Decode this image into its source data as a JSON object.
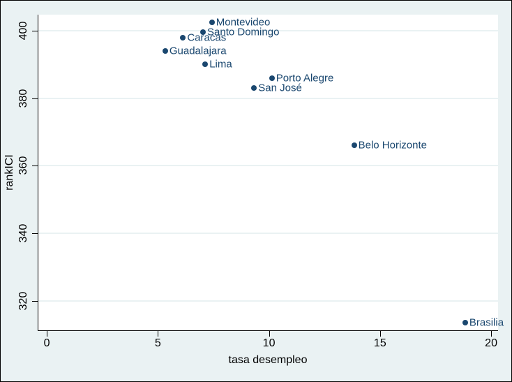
{
  "figure": {
    "background_color": "#eaf2f3",
    "plot_background_color": "#ffffff",
    "border_color": "#000000",
    "grid_color": "#eaf2f3",
    "axis_color": "#000000"
  },
  "chart_data": {
    "type": "scatter",
    "title": "",
    "xlabel": "tasa desempleo",
    "ylabel": "rankICI",
    "x_ticks": [
      0,
      5,
      10,
      15,
      20
    ],
    "y_ticks": [
      320,
      340,
      360,
      380,
      400
    ],
    "xlim": [
      -0.41,
      20.28
    ],
    "ylim": [
      311.3,
      404.75
    ],
    "grid": "horizontal",
    "legend": "none",
    "marker_color": "#1a476f",
    "marker_label_color": "#1a476f",
    "points": [
      {
        "label": "Montevideo",
        "x": 7.4,
        "y": 402.5
      },
      {
        "label": "Santo Domingo",
        "x": 7.0,
        "y": 399.5
      },
      {
        "label": "Caracas",
        "x": 6.1,
        "y": 398
      },
      {
        "label": "Guadalajara",
        "x": 5.3,
        "y": 394
      },
      {
        "label": "Lima",
        "x": 7.1,
        "y": 390
      },
      {
        "label": "Porto Alegre",
        "x": 10.1,
        "y": 386
      },
      {
        "label": "San José",
        "x": 9.3,
        "y": 383
      },
      {
        "label": "Belo Horizonte",
        "x": 13.8,
        "y": 366
      },
      {
        "label": "Brasilia",
        "x": 18.8,
        "y": 313.5
      }
    ]
  }
}
